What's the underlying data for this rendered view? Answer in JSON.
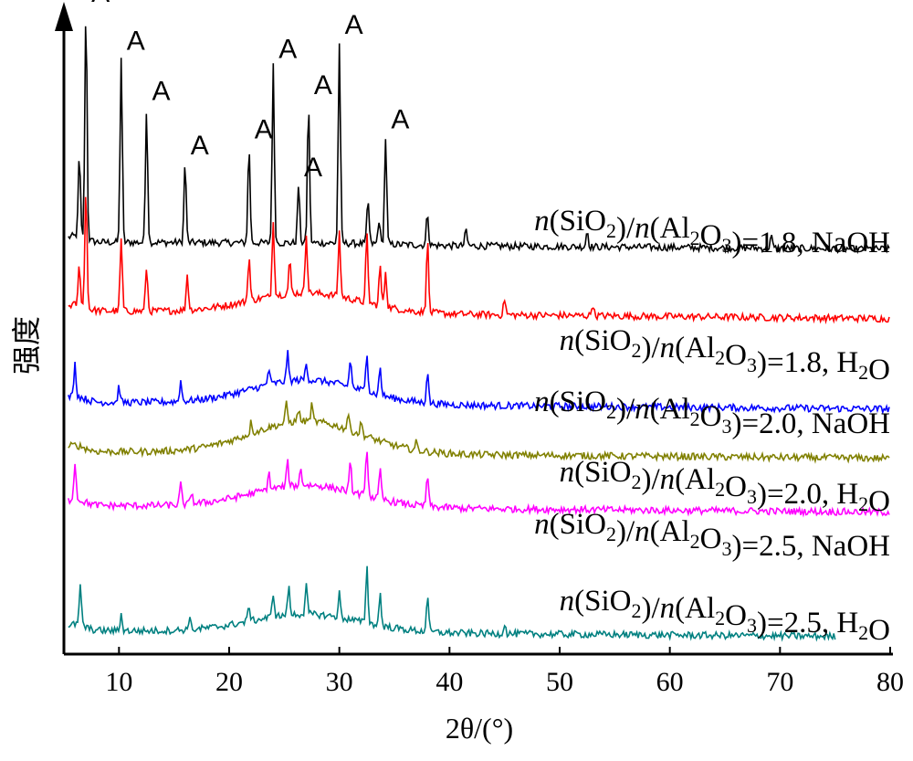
{
  "chart_data": {
    "type": "line",
    "xlabel": "2θ/(°)",
    "ylabel": "强度",
    "xlim": [
      5,
      80
    ],
    "xticks": [
      10,
      20,
      30,
      40,
      50,
      60,
      70,
      80
    ],
    "peak_marker": "A",
    "peak_marker_positions": [
      7.0,
      10.2,
      12.5,
      16.0,
      21.8,
      24.0,
      26.3,
      27.2,
      30.0,
      34.2
    ],
    "series": [
      {
        "label": {
          "n1": "n",
          "a": "(SiO",
          "s1": "2",
          "b": ")/",
          "n2": "n",
          "c": "(Al",
          "s2": "2",
          "d": "O",
          "s3": "3",
          "e": ")=1.8, NaOH"
        },
        "color": "#000000",
        "base": [
          [
            5,
            0.0
          ],
          [
            30,
            0.05
          ],
          [
            40,
            0.18
          ],
          [
            80,
            0.35
          ]
        ],
        "amorphous_hump": 0.0,
        "peaks": [
          [
            6.4,
            4.0
          ],
          [
            7.0,
            11.6
          ],
          [
            10.2,
            9.2
          ],
          [
            12.5,
            6.7
          ],
          [
            16.0,
            4.0
          ],
          [
            21.8,
            4.8
          ],
          [
            24.0,
            8.8
          ],
          [
            26.3,
            2.9
          ],
          [
            27.2,
            7.0
          ],
          [
            30.0,
            10.0
          ],
          [
            32.6,
            2.2
          ],
          [
            33.6,
            1.2
          ],
          [
            34.2,
            5.3
          ],
          [
            38.0,
            1.6
          ],
          [
            41.5,
            0.8
          ],
          [
            52.5,
            0.8
          ],
          [
            69.2,
            0.6
          ]
        ]
      },
      {
        "label": {
          "n1": "n",
          "a": "(SiO",
          "s1": "2",
          "b": ")/",
          "n2": "n",
          "c": "(Al",
          "s2": "2",
          "d": "O",
          "s3": "3",
          "e": ")=1.8, H",
          "s4": "2",
          "f": "O"
        },
        "color": "#ff0000",
        "base": [
          [
            5,
            0.0
          ],
          [
            80,
            0.4
          ]
        ],
        "amorphous_hump": 1.0,
        "peaks": [
          [
            6.4,
            2.0
          ],
          [
            7.0,
            6.0
          ],
          [
            10.2,
            3.6
          ],
          [
            12.5,
            2.2
          ],
          [
            16.2,
            1.8
          ],
          [
            21.8,
            2.2
          ],
          [
            24.0,
            3.8
          ],
          [
            25.5,
            1.6
          ],
          [
            27.0,
            3.0
          ],
          [
            30.0,
            3.2
          ],
          [
            32.5,
            3.4
          ],
          [
            33.7,
            2.0
          ],
          [
            34.2,
            1.8
          ],
          [
            38.0,
            3.6
          ],
          [
            45.0,
            0.8
          ],
          [
            53.0,
            0.6
          ]
        ]
      },
      {
        "label": {
          "n1": "n",
          "a": "(SiO",
          "s1": "2",
          "b": ")/",
          "n2": "n",
          "c": "(Al",
          "s2": "2",
          "d": "O",
          "s3": "3",
          "e": ")=2.0, NaOH"
        },
        "color": "#0000ff",
        "base": [
          [
            5,
            0.0
          ],
          [
            80,
            0.35
          ]
        ],
        "amorphous_hump": 1.2,
        "peaks": [
          [
            6.0,
            1.6
          ],
          [
            10.0,
            0.8
          ],
          [
            15.6,
            1.0
          ],
          [
            23.6,
            0.8
          ],
          [
            25.3,
            1.4
          ],
          [
            27.0,
            0.8
          ],
          [
            31.0,
            1.4
          ],
          [
            32.5,
            2.0
          ],
          [
            33.7,
            1.4
          ],
          [
            38.0,
            1.6
          ]
        ]
      },
      {
        "label": {
          "n1": "n",
          "a": "(SiO",
          "s1": "2",
          "b": ")/",
          "n2": "n",
          "c": "(Al",
          "s2": "2",
          "d": "O",
          "s3": "3",
          "e": ")=2.0, H",
          "s4": "2",
          "f": "O"
        },
        "color": "#808000",
        "base": [
          [
            5,
            0.0
          ],
          [
            80,
            0.35
          ]
        ],
        "amorphous_hump": 1.6,
        "peaks": [
          [
            22.0,
            0.6
          ],
          [
            25.2,
            1.0
          ],
          [
            26.3,
            0.6
          ],
          [
            27.5,
            0.8
          ],
          [
            30.8,
            0.8
          ],
          [
            32.0,
            0.6
          ],
          [
            37.0,
            0.4
          ]
        ]
      },
      {
        "label": {
          "n1": "n",
          "a": "(SiO",
          "s1": "2",
          "b": ")/",
          "n2": "n",
          "c": "(Al",
          "s2": "2",
          "d": "O",
          "s3": "3",
          "e": ")=2.5, NaOH"
        },
        "color": "#ff00ff",
        "base": [
          [
            5,
            0.0
          ],
          [
            80,
            0.35
          ]
        ],
        "amorphous_hump": 1.1,
        "peaks": [
          [
            6.0,
            1.9
          ],
          [
            15.6,
            1.0
          ],
          [
            16.6,
            0.6
          ],
          [
            23.6,
            0.8
          ],
          [
            25.3,
            1.2
          ],
          [
            26.5,
            0.8
          ],
          [
            31.0,
            1.4
          ],
          [
            32.5,
            2.4
          ],
          [
            33.7,
            1.4
          ],
          [
            38.0,
            1.6
          ]
        ]
      },
      {
        "label": {
          "n1": "n",
          "a": "(SiO",
          "s1": "2",
          "b": ")/",
          "n2": "n",
          "c": "(Al",
          "s2": "2",
          "d": "O",
          "s3": "3",
          "e": ")=2.5, H",
          "s4": "2",
          "f": "O"
        },
        "color": "#008080",
        "base": [
          [
            5,
            0.0
          ],
          [
            75,
            0.3
          ]
        ],
        "amorphous_hump": 0.9,
        "peaks": [
          [
            6.5,
            2.0
          ],
          [
            10.2,
            0.8
          ],
          [
            16.4,
            0.6
          ],
          [
            21.8,
            0.8
          ],
          [
            24.0,
            1.2
          ],
          [
            25.4,
            1.4
          ],
          [
            27.0,
            1.4
          ],
          [
            30.0,
            1.2
          ],
          [
            32.5,
            2.8
          ],
          [
            33.7,
            1.6
          ],
          [
            38.0,
            1.8
          ],
          [
            45.0,
            0.5
          ]
        ]
      }
    ]
  }
}
